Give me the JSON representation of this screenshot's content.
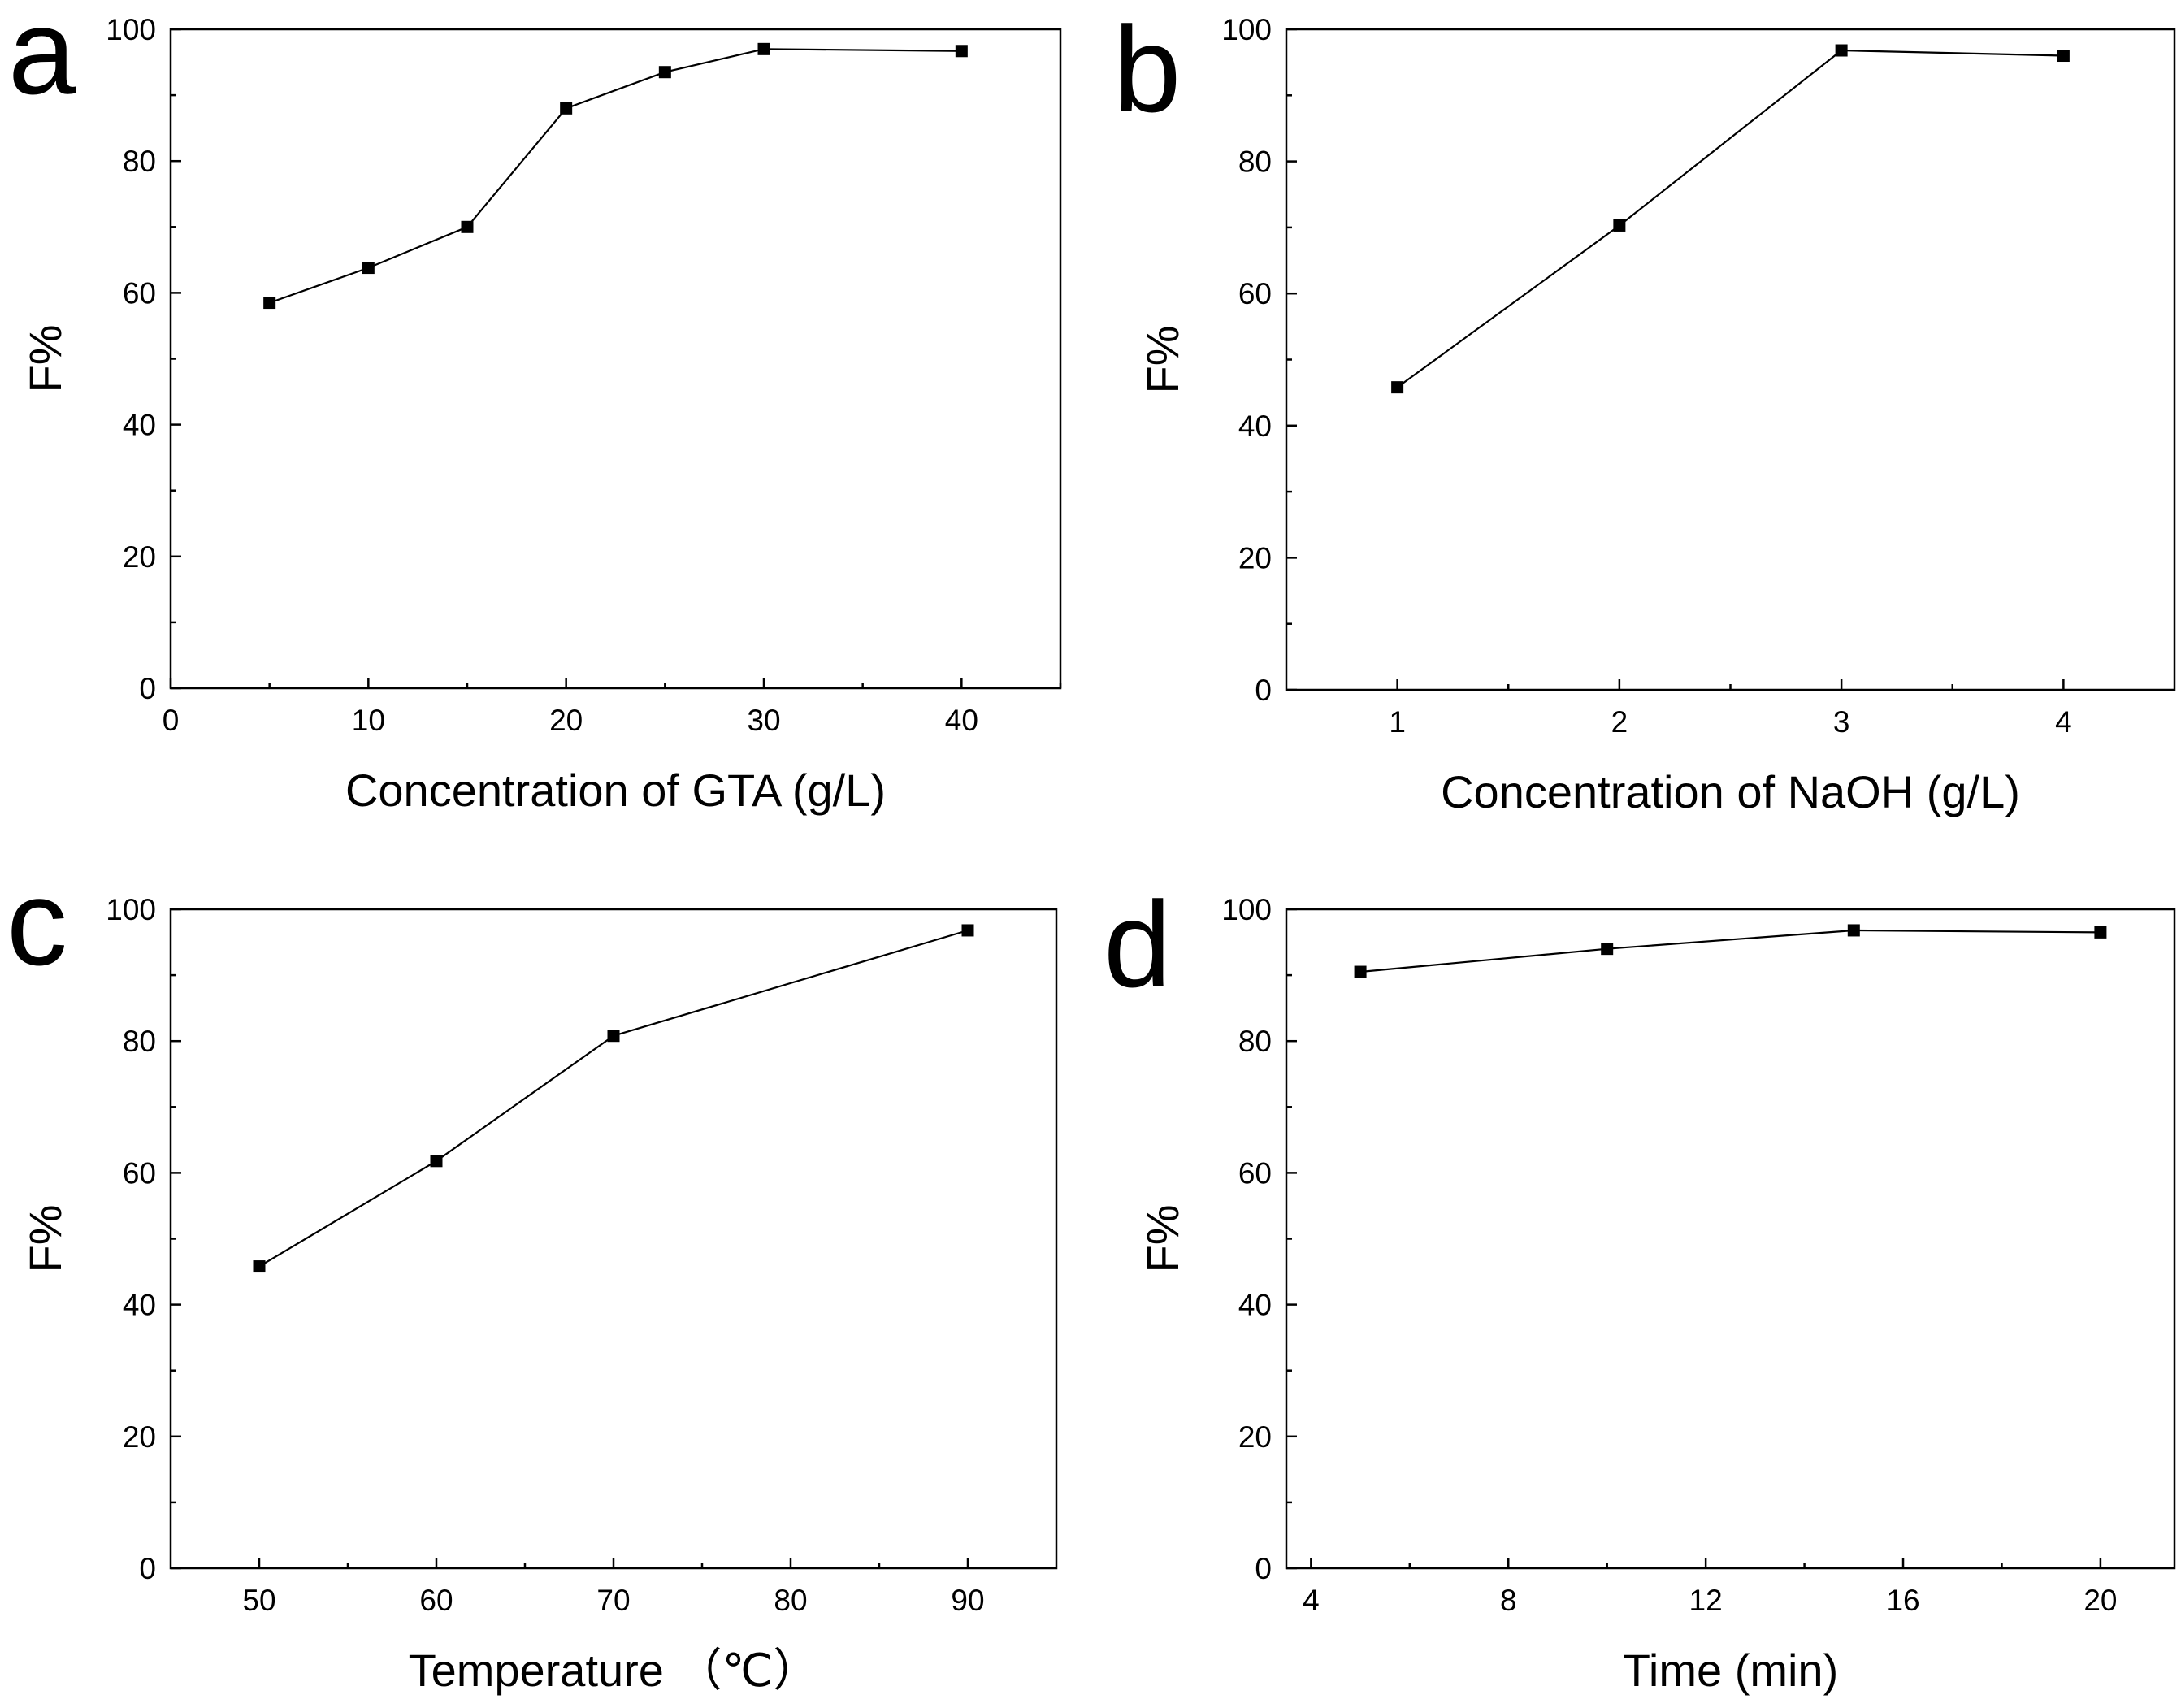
{
  "chart_data": [
    {
      "panel": "a",
      "type": "line",
      "title": "",
      "xlabel": "Concentration of GTA (g/L)",
      "ylabel": "F%",
      "xlim": [
        0,
        45
      ],
      "ylim": [
        0,
        100
      ],
      "xticks": [
        0,
        10,
        20,
        30,
        40
      ],
      "xticklabels": [
        "0",
        "10",
        "20",
        "30",
        "40"
      ],
      "xminor": [
        5,
        15,
        25,
        35,
        45
      ],
      "yticks": [
        0,
        20,
        40,
        60,
        80,
        100
      ],
      "yticklabels": [
        "0",
        "20",
        "40",
        "60",
        "80",
        "100"
      ],
      "yminor": [
        10,
        30,
        50,
        70,
        90
      ],
      "marker": "square",
      "series": [
        {
          "name": "F%",
          "x": [
            5,
            10,
            15,
            20,
            25,
            30,
            40
          ],
          "y": [
            58.5,
            63.8,
            70.0,
            88.0,
            93.5,
            97.0,
            96.7
          ]
        }
      ]
    },
    {
      "panel": "b",
      "type": "line",
      "title": "",
      "xlabel": "Concentration of NaOH (g/L)",
      "ylabel": "F%",
      "xlim": [
        0.5,
        4.5
      ],
      "ylim": [
        0,
        100
      ],
      "xticks": [
        1,
        2,
        3,
        4
      ],
      "xticklabels": [
        "1",
        "2",
        "3",
        "4"
      ],
      "xminor": [
        1.5,
        2.5,
        3.5
      ],
      "yticks": [
        0,
        20,
        40,
        60,
        80,
        100
      ],
      "yticklabels": [
        "0",
        "20",
        "40",
        "60",
        "80",
        "100"
      ],
      "yminor": [
        10,
        30,
        50,
        70,
        90
      ],
      "marker": "square",
      "series": [
        {
          "name": "F%",
          "x": [
            1,
            2,
            3,
            4
          ],
          "y": [
            45.8,
            70.3,
            96.8,
            96.0
          ]
        }
      ]
    },
    {
      "panel": "c",
      "type": "line",
      "title": "",
      "xlabel": "Temperature （℃）",
      "ylabel": "F%",
      "xlim": [
        45,
        95
      ],
      "ylim": [
        0,
        100
      ],
      "xticks": [
        50,
        60,
        70,
        80,
        90
      ],
      "xticklabels": [
        "50",
        "60",
        "70",
        "80",
        "90"
      ],
      "xminor": [
        55,
        65,
        75,
        85
      ],
      "yticks": [
        0,
        20,
        40,
        60,
        80,
        100
      ],
      "yticklabels": [
        "0",
        "20",
        "40",
        "60",
        "80",
        "100"
      ],
      "yminor": [
        10,
        30,
        50,
        70,
        90
      ],
      "marker": "square",
      "series": [
        {
          "name": "F%",
          "x": [
            50,
            60,
            70,
            90
          ],
          "y": [
            45.8,
            61.8,
            80.8,
            96.8
          ]
        }
      ]
    },
    {
      "panel": "d",
      "type": "line",
      "title": "",
      "xlabel": "Time (min)",
      "ylabel": "F%",
      "xlim": [
        3.5,
        21.5
      ],
      "ylim": [
        0,
        100
      ],
      "xticks": [
        4,
        8,
        12,
        16,
        20
      ],
      "xticklabels": [
        "4",
        "8",
        "12",
        "16",
        "20"
      ],
      "xminor": [
        6,
        10,
        14,
        18
      ],
      "yticks": [
        0,
        20,
        40,
        60,
        80,
        100
      ],
      "yticklabels": [
        "0",
        "20",
        "40",
        "60",
        "80",
        "100"
      ],
      "yminor": [
        10,
        30,
        50,
        70,
        90
      ],
      "marker": "square",
      "series": [
        {
          "name": "F%",
          "x": [
            5,
            10,
            15,
            20
          ],
          "y": [
            90.5,
            94.0,
            96.8,
            96.5
          ]
        }
      ]
    }
  ]
}
